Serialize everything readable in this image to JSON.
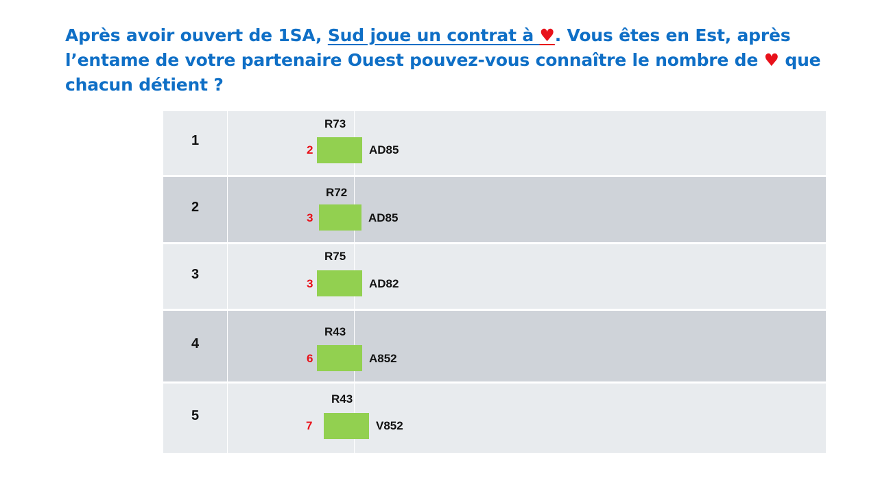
{
  "title": {
    "part1": "Après avoir ouvert de 1SA, ",
    "underlined": "Sud joue un contrat à ",
    "heart_symbol": "♥",
    "part2": ". Vous êtes en Est, après l’entame de votre partenaire Ouest pouvez-vous connaître le nombre de ",
    "part3": " que chacun détient ?"
  },
  "colors": {
    "title": "#0f6fc6",
    "heart": "#e8111a",
    "table_box": "#92d050",
    "row_light": "#e8ebee",
    "row_dark": "#cfd3d9"
  },
  "rows": [
    {
      "num": "1",
      "north": "R73",
      "lead": "2",
      "east": "AD85",
      "answer": ""
    },
    {
      "num": "2",
      "north": "R72",
      "lead": "3",
      "east": "AD85",
      "answer": ""
    },
    {
      "num": "3",
      "north": "R75",
      "lead": "3",
      "east": "AD82",
      "answer": ""
    },
    {
      "num": "4",
      "north": "R43",
      "lead": "6",
      "east": "A852",
      "answer": ""
    },
    {
      "num": "5",
      "north": "R43",
      "lead": "7",
      "east": "V852",
      "answer": ""
    }
  ]
}
